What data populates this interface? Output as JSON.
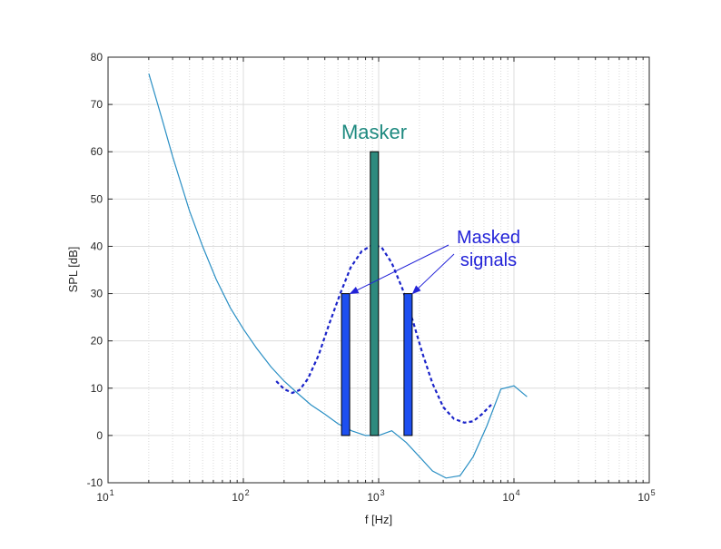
{
  "chart_data": {
    "type": "line",
    "xlabel": "f [Hz]",
    "ylabel": "SPL [dB]",
    "xscale": "log",
    "xlim": [
      10,
      100000
    ],
    "ylim": [
      -10,
      80
    ],
    "grid": true,
    "x_tick_labels": [
      {
        "base": "10",
        "exp": "1",
        "value": 10
      },
      {
        "base": "10",
        "exp": "2",
        "value": 100
      },
      {
        "base": "10",
        "exp": "3",
        "value": 1000
      },
      {
        "base": "10",
        "exp": "4",
        "value": 10000
      },
      {
        "base": "10",
        "exp": "5",
        "value": 100000
      }
    ],
    "y_ticks": [
      -10,
      0,
      10,
      20,
      30,
      40,
      50,
      60,
      70,
      80
    ],
    "threshold_curve": {
      "color": "#2a8fc4",
      "points": [
        [
          20,
          76.5
        ],
        [
          25,
          67
        ],
        [
          30,
          59
        ],
        [
          40,
          47.5
        ],
        [
          50,
          40
        ],
        [
          63,
          33
        ],
        [
          80,
          27
        ],
        [
          100,
          22.5
        ],
        [
          125,
          18.5
        ],
        [
          160,
          14.5
        ],
        [
          200,
          11.5
        ],
        [
          250,
          9
        ],
        [
          315,
          6.5
        ],
        [
          400,
          4.5
        ],
        [
          500,
          2.5
        ],
        [
          630,
          1
        ],
        [
          800,
          0
        ],
        [
          1000,
          0
        ],
        [
          1250,
          1
        ],
        [
          1600,
          -1.5
        ],
        [
          2000,
          -4.5
        ],
        [
          2500,
          -7.5
        ],
        [
          3150,
          -9
        ],
        [
          4000,
          -8.5
        ],
        [
          5000,
          -4.5
        ],
        [
          6300,
          2
        ],
        [
          8000,
          9.8
        ],
        [
          10000,
          10.5
        ],
        [
          12500,
          8.2
        ]
      ]
    },
    "masking_curve": {
      "color": "#1a23c9",
      "style": "dashed",
      "points": [
        [
          175,
          11.5
        ],
        [
          200,
          9.8
        ],
        [
          230,
          9
        ],
        [
          260,
          9.6
        ],
        [
          300,
          12
        ],
        [
          360,
          17
        ],
        [
          430,
          23.5
        ],
        [
          520,
          30
        ],
        [
          620,
          35.5
        ],
        [
          750,
          39
        ],
        [
          900,
          40.3
        ],
        [
          1050,
          39.8
        ],
        [
          1250,
          36.5
        ],
        [
          1500,
          31
        ],
        [
          1800,
          24
        ],
        [
          2100,
          17.5
        ],
        [
          2500,
          11
        ],
        [
          3000,
          6
        ],
        [
          3600,
          3.5
        ],
        [
          4300,
          2.7
        ],
        [
          5000,
          3
        ],
        [
          5800,
          4.5
        ],
        [
          6800,
          6.5
        ]
      ]
    },
    "bars": [
      {
        "name": "masked-left",
        "x": 570,
        "value": 30,
        "color": "#1e4ff0"
      },
      {
        "name": "masker",
        "x": 930,
        "value": 60,
        "color": "#2e8a7e"
      },
      {
        "name": "masked-right",
        "x": 1650,
        "value": 30,
        "color": "#1e4ff0"
      }
    ],
    "annotations": {
      "masker_label": "Masker",
      "masker_color": "#1f8a80",
      "masked_label_line1": "Masked",
      "masked_label_line2": "signals",
      "masked_color": "#2323d8"
    }
  }
}
